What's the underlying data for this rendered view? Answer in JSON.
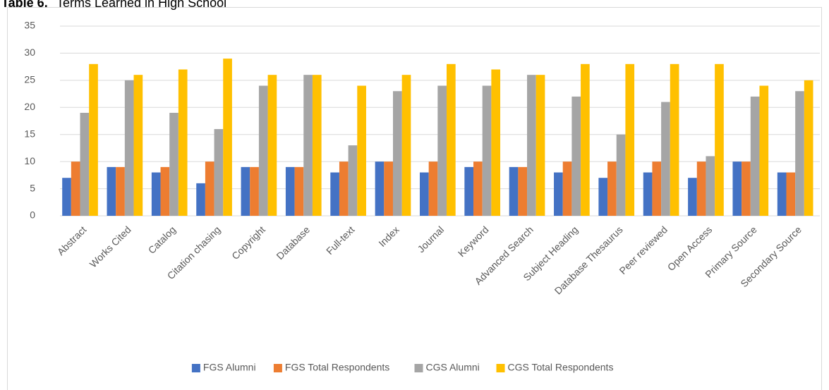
{
  "chart_data": {
    "type": "bar",
    "label": "Table 6.",
    "title": "Terms Learned in High School",
    "categories": [
      "Abstract",
      "Works Cited",
      "Catalog",
      "Citation chasing",
      "Copyright",
      "Database",
      "Full-text",
      "Index",
      "Journal",
      "Keyword",
      "Advanced Search",
      "Subject Heading",
      "Database Thesaurus",
      "Peer reviewed",
      "Open Access",
      "Primary Source",
      "Secondary Source"
    ],
    "series": [
      {
        "name": "FGS Alumni",
        "color": "#4472c4",
        "values": [
          7,
          9,
          8,
          6,
          9,
          9,
          8,
          10,
          8,
          9,
          9,
          8,
          7,
          8,
          7,
          10,
          8
        ]
      },
      {
        "name": "FGS Total Respondents",
        "color": "#ed7d31",
        "values": [
          10,
          9,
          9,
          10,
          9,
          9,
          10,
          10,
          10,
          10,
          9,
          10,
          10,
          10,
          10,
          10,
          8
        ]
      },
      {
        "name": "CGS Alumni",
        "color": "#a5a5a5",
        "values": [
          19,
          25,
          19,
          16,
          24,
          26,
          13,
          23,
          24,
          24,
          26,
          22,
          15,
          21,
          11,
          22,
          23
        ]
      },
      {
        "name": "CGS Total Respondents",
        "color": "#ffc000",
        "values": [
          28,
          26,
          27,
          29,
          26,
          26,
          24,
          26,
          28,
          27,
          26,
          28,
          28,
          28,
          28,
          24,
          25
        ]
      }
    ],
    "ylim": [
      0,
      35
    ],
    "yticks": [
      0,
      5,
      10,
      15,
      20,
      25,
      30,
      35
    ],
    "grid": true,
    "legend": "bottom"
  }
}
